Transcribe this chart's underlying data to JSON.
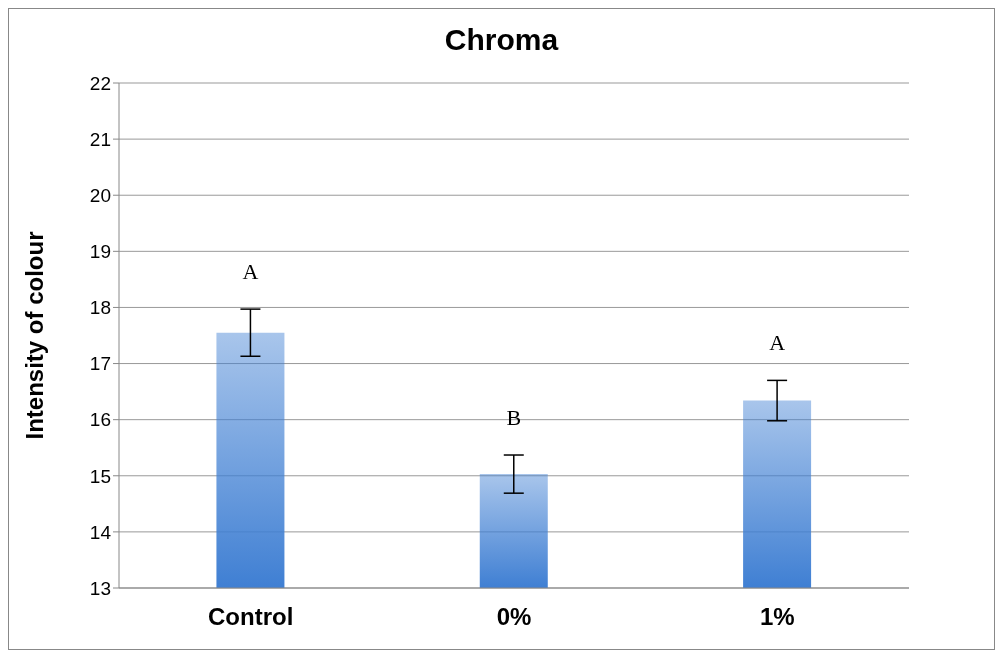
{
  "chart_data": {
    "type": "bar",
    "title": "Chroma",
    "ylabel": "Intensity of colour",
    "categories": [
      "Control",
      "0%",
      "1%"
    ],
    "series": [
      {
        "color": "#3f7fd3",
        "values": [
          17.55,
          15.03,
          16.34
        ],
        "errors": [
          0.42,
          0.34,
          0.36
        ]
      }
    ],
    "ylim": [
      13,
      22
    ],
    "yticks": [
      13,
      14,
      15,
      16,
      17,
      18,
      19,
      20,
      21,
      22
    ],
    "grid": "y",
    "legend": false,
    "annotations": [
      "A",
      "B",
      "A"
    ]
  }
}
